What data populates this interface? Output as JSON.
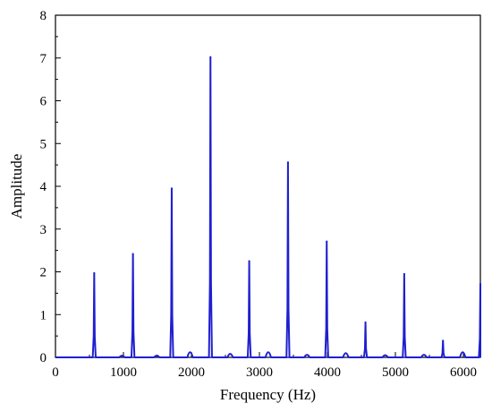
{
  "chart_data": {
    "type": "line",
    "title": "",
    "xlabel": "Frequency (Hz)",
    "ylabel": "Amplitude",
    "xlim": [
      0,
      6250
    ],
    "ylim": [
      0,
      8
    ],
    "x_ticks": [
      0,
      1000,
      2000,
      3000,
      4000,
      5000,
      6000
    ],
    "y_ticks": [
      0,
      1,
      2,
      3,
      4,
      5,
      6,
      7,
      8
    ],
    "grid": false,
    "legend": "none",
    "line_color": "#1f1fd0",
    "series": [
      {
        "values_description_only": false,
        "peaks": [
          {
            "x": 570,
            "y": 1.97
          },
          {
            "x": 1140,
            "y": 2.42
          },
          {
            "x": 1710,
            "y": 3.95
          },
          {
            "x": 2280,
            "y": 7.02
          },
          {
            "x": 2850,
            "y": 2.25
          },
          {
            "x": 3420,
            "y": 4.56
          },
          {
            "x": 3990,
            "y": 2.71
          },
          {
            "x": 4560,
            "y": 0.82
          },
          {
            "x": 5130,
            "y": 1.95
          },
          {
            "x": 5700,
            "y": 0.39
          },
          {
            "x": 6250,
            "y": 1.72
          }
        ],
        "minor_peaks": [
          {
            "x": 980,
            "y": 0.04
          },
          {
            "x": 1490,
            "y": 0.04
          },
          {
            "x": 1980,
            "y": 0.12
          },
          {
            "x": 2570,
            "y": 0.08
          },
          {
            "x": 3130,
            "y": 0.12
          },
          {
            "x": 3700,
            "y": 0.06
          },
          {
            "x": 4270,
            "y": 0.1
          },
          {
            "x": 4850,
            "y": 0.05
          },
          {
            "x": 5420,
            "y": 0.06
          },
          {
            "x": 5990,
            "y": 0.12
          }
        ]
      }
    ]
  }
}
